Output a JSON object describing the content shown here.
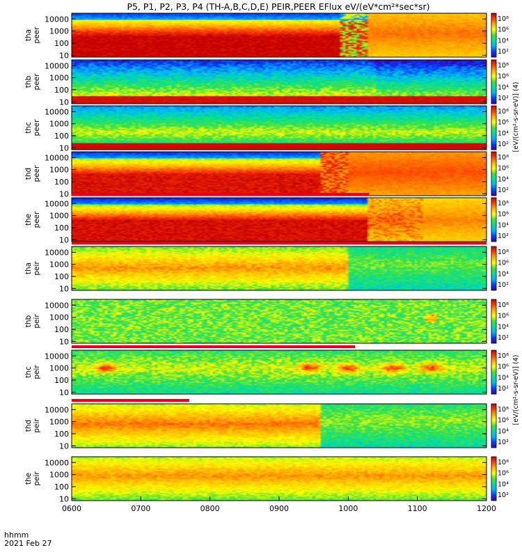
{
  "figure": {
    "title": "P5, P1, P2, P3, P4 (TH-A,B,C,D,E) PEIR,PEER EFlux eV/(eV*cm²*sec*sr)",
    "footer_time_label": "hhmm",
    "footer_date_label": "2021 Feb 27",
    "colorbar_unit_peer": "[eV/(cm²-s-sr-eV)] (4)",
    "colorbar_unit_peir": "[eV/(cm²-s-sr-eV)] (4)"
  },
  "chart_data": {
    "type": "heatmap",
    "title": "P5, P1, P2, P3, P4 (TH-A,B,C,D,E) PEIR,PEER EFlux eV/(eV*cm²*sec*sr)",
    "x_tick_labels": [
      "0600",
      "0700",
      "0800",
      "0900",
      "1000",
      "1100",
      "1200"
    ],
    "x_tick_values": [
      600,
      700,
      800,
      900,
      1000,
      1100,
      1200
    ],
    "xlim": [
      600,
      1200
    ],
    "y_scale": "log",
    "y_tick_labels": [
      "10000",
      "1000",
      "100",
      "10"
    ],
    "y_tick_values": [
      10000,
      1000,
      100,
      10
    ],
    "ylim": [
      7,
      30000
    ],
    "colorbar_scale": "log",
    "colorbar_tick_exponents": [
      2,
      4,
      6,
      8
    ],
    "colormap": [
      "#3a00a8",
      "#0040ff",
      "#00b4ff",
      "#00e0a0",
      "#40e040",
      "#ffff00",
      "#ffb000",
      "#ff4000",
      "#c80000"
    ],
    "panels": [
      {
        "label1": "tha",
        "label2": "peer",
        "ticks": [
          "10000",
          "1000",
          "100",
          "10"
        ],
        "cb_ticks": [
          "10²",
          "10⁴",
          "10⁶",
          "10⁸"
        ],
        "style": "peer_tha",
        "flag": null
      },
      {
        "label1": "thb",
        "label2": "peer",
        "ticks": [
          "10000",
          "1000",
          "100",
          "10"
        ],
        "cb_ticks": [
          "10²",
          "10⁴",
          "10⁶",
          "10⁸"
        ],
        "style": "peer_thb",
        "flag": null
      },
      {
        "label1": "thc",
        "label2": "peer",
        "ticks": [
          "10000",
          "1000",
          "100",
          "10"
        ],
        "cb_ticks": [
          "10²",
          "10⁴",
          "10⁶",
          "10⁸"
        ],
        "style": "peer_thc",
        "flag": null
      },
      {
        "label1": "thd",
        "label2": "peer",
        "ticks": [
          "10000",
          "1000",
          "100",
          "10"
        ],
        "cb_ticks": [
          "10²",
          "10⁴",
          "10⁶",
          "10⁸"
        ],
        "style": "peer_thd",
        "flag": null
      },
      {
        "label1": "the",
        "label2": "peer",
        "ticks": [
          "10000",
          "1000",
          "100",
          "10"
        ],
        "cb_ticks": [
          "10²",
          "10⁴",
          "10⁶",
          "10⁸"
        ],
        "style": "peer_the",
        "flag": [
          600,
          1030
        ]
      },
      {
        "label1": "tha",
        "label2": "peir",
        "ticks": [
          "10000",
          "1000",
          "100",
          "10"
        ],
        "cb_ticks": [
          "10²",
          "10⁴",
          "10⁶",
          "10⁸"
        ],
        "style": "peir_tha",
        "flag": [
          600,
          1200
        ]
      },
      {
        "label1": "thb",
        "label2": "peir",
        "ticks": [
          "10000",
          "1000",
          "100",
          "10"
        ],
        "cb_ticks": [
          "10²",
          "10⁴",
          "10⁶",
          "10⁸"
        ],
        "style": "peir_thb",
        "flag": null
      },
      {
        "label1": "thc",
        "label2": "peir",
        "ticks": [
          "10000",
          "1000",
          "100",
          "10"
        ],
        "cb_ticks": [
          "10²",
          "10⁴",
          "10⁶",
          "10⁸"
        ],
        "style": "peir_thc",
        "flag": [
          600,
          1010
        ]
      },
      {
        "label1": "thd",
        "label2": "peir",
        "ticks": [
          "10000",
          "1000",
          "100",
          "10"
        ],
        "cb_ticks": [
          "10²",
          "10⁴",
          "10⁶",
          "10⁸"
        ],
        "style": "peir_thd",
        "flag": [
          600,
          770
        ]
      },
      {
        "label1": "the",
        "label2": "peir",
        "ticks": [
          "10000",
          "1000",
          "100",
          "10"
        ],
        "cb_ticks": [
          "10²",
          "10⁴",
          "10⁶",
          "10⁸"
        ],
        "style": "peir_the",
        "flag": null
      }
    ]
  }
}
